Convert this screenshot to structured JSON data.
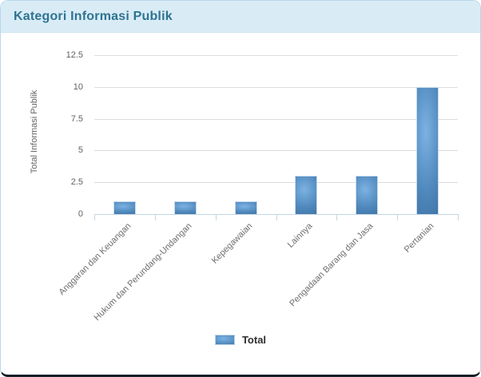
{
  "header": {
    "title": "Kategori Informasi Publik"
  },
  "colors": {
    "header_bg": "#d9ecf6",
    "header_text": "#2e7391",
    "card_border": "#b9d8e8",
    "card_bottom_edge": "#141f26",
    "bar_highlight": "#7db2e3",
    "bar_mid": "#5089bd",
    "bar_dark": "#3a6c9c",
    "gridline": "#dcdcdc",
    "axis_line": "#c3d7e3",
    "tick_text": "#616161",
    "legend_text": "#2f2f2f"
  },
  "chart_data": {
    "type": "bar",
    "title": "Kategori Informasi Publik",
    "categories": [
      "Anggaran dan Keuangan",
      "Hukum dan Perundang-Undangan",
      "Kepegawaian",
      "Lainnya",
      "Pengadaan Barang dan Jasa",
      "Pertanian"
    ],
    "series": [
      {
        "name": "Total",
        "values": [
          1,
          1,
          1,
          3,
          3,
          10
        ]
      }
    ],
    "xlabel": "",
    "ylabel": "Total Informasi Publik",
    "ylim": [
      0,
      12.5
    ],
    "yticks": [
      0,
      2.5,
      5,
      7.5,
      10,
      12.5
    ],
    "grid": true,
    "legend_position": "bottom"
  }
}
